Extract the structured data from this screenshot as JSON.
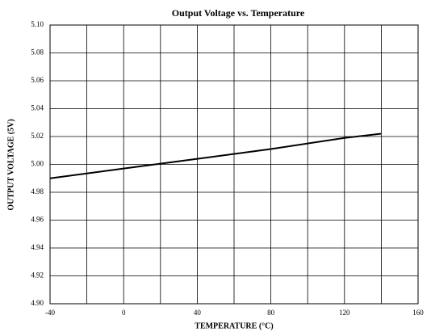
{
  "chart_data": {
    "type": "line",
    "title": "Output Voltage vs. Temperature",
    "x_label": "TEMPERATURE  (°C)",
    "y_label": "OUTPUT VOLTAGE (5V)",
    "x": [
      -40,
      0,
      40,
      80,
      120,
      140
    ],
    "series": [
      {
        "color": "#000000",
        "values": [
          4.99,
          4.997,
          5.004,
          5.011,
          5.019,
          5.022
        ]
      }
    ],
    "xlim": [
      -40,
      160
    ],
    "xticks": [
      -40,
      0,
      40,
      80,
      120,
      160
    ],
    "xminor_grid": [
      -20,
      20,
      60,
      100,
      140
    ],
    "ylim": [
      4.9,
      5.1
    ],
    "yticks": [
      {
        "value": 4.9,
        "label": "4.90"
      },
      4.92,
      4.94,
      4.96,
      4.98,
      {
        "value": 5.0,
        "label": "5.00"
      },
      5.02,
      5.04,
      5.06,
      5.08,
      {
        "value": 5.1,
        "label": "5.10"
      }
    ],
    "grid": true
  }
}
